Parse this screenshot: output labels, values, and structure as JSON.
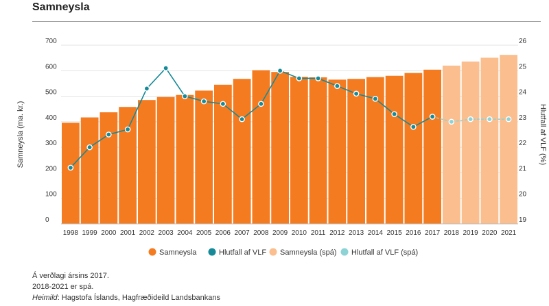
{
  "header": {
    "title": "Samneysla"
  },
  "colors": {
    "bar": "#f47b20",
    "bar_forecast": "#fbbe8e",
    "line": "#168a98",
    "line_forecast": "#8dd3d6",
    "grid": "#e3e3e3",
    "text": "#333333"
  },
  "chart_data": {
    "type": "bar",
    "categories": [
      "1998",
      "1999",
      "2000",
      "2001",
      "2002",
      "2003",
      "2004",
      "2005",
      "2006",
      "2007",
      "2008",
      "2009",
      "2010",
      "2011",
      "2012",
      "2013",
      "2014",
      "2015",
      "2016",
      "2017",
      "2018",
      "2019",
      "2020",
      "2021"
    ],
    "forecast_from_index": 20,
    "ylabel": "Samneysla (ma. kr.)",
    "y2label": "Hlutfall af VLF (%)",
    "ylim": [
      0,
      700
    ],
    "y2lim": [
      19,
      26
    ],
    "yticks": [
      0,
      100,
      200,
      300,
      400,
      500,
      600,
      700
    ],
    "y2ticks": [
      19,
      20,
      21,
      22,
      23,
      24,
      25,
      26
    ],
    "grid": true,
    "series": [
      {
        "name": "Samneysla",
        "type": "bar",
        "axis": "left",
        "values": [
          396,
          417,
          437,
          458,
          485,
          497,
          505,
          522,
          545,
          568,
          602,
          595,
          576,
          574,
          565,
          568,
          575,
          580,
          591,
          604,
          null,
          null,
          null,
          null
        ]
      },
      {
        "name": "Hlutfall af VLF",
        "type": "line",
        "axis": "right",
        "values": [
          21.2,
          22.0,
          22.5,
          22.7,
          24.3,
          25.1,
          24.0,
          23.8,
          23.7,
          23.1,
          23.7,
          25.0,
          24.7,
          24.7,
          24.4,
          24.1,
          23.9,
          23.3,
          22.8,
          23.2,
          null,
          null,
          null,
          null
        ]
      },
      {
        "name": "Samneysla (spá)",
        "type": "bar",
        "axis": "left",
        "values": [
          null,
          null,
          null,
          null,
          null,
          null,
          null,
          null,
          null,
          null,
          null,
          null,
          null,
          null,
          null,
          null,
          null,
          null,
          null,
          null,
          620,
          636,
          651,
          662
        ]
      },
      {
        "name": "Hlutfall af VLF (spá)",
        "type": "line",
        "axis": "right",
        "values": [
          null,
          null,
          null,
          null,
          null,
          null,
          null,
          null,
          null,
          null,
          null,
          null,
          null,
          null,
          null,
          null,
          null,
          null,
          null,
          23.2,
          23.0,
          23.1,
          23.1,
          23.1
        ]
      }
    ]
  },
  "notes": {
    "line1": "Á verðlagi ársins 2017.",
    "line2": "2018-2021 er spá.",
    "source_label": "Heimild",
    "source_text": ": Hagstofa Íslands, Hagfræðideild Landsbankans"
  }
}
